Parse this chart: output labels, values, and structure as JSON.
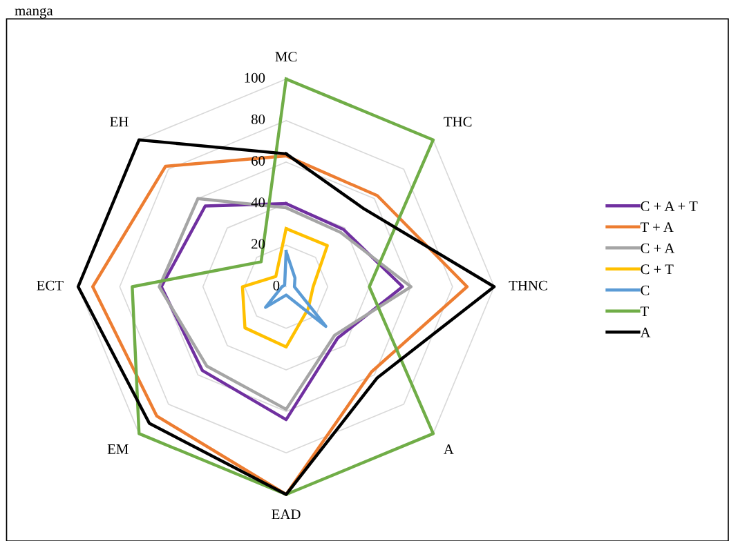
{
  "chart_data": {
    "type": "radar",
    "annotations": [
      "manga"
    ],
    "categories": [
      "MC",
      "THC",
      "THNC",
      "A",
      "EAD",
      "EM",
      "ECT",
      "EH"
    ],
    "ylim": [
      0,
      100
    ],
    "yticks": [
      0,
      20,
      40,
      60,
      80,
      100
    ],
    "grid": true,
    "legend": "right",
    "marker": "none",
    "line_style": "solid",
    "series": [
      {
        "name": "C + A + T",
        "color": "#7030a0",
        "values": [
          40,
          39,
          56,
          35,
          64,
          57,
          60,
          55
        ]
      },
      {
        "name": "T + A",
        "color": "#ed7d31",
        "values": [
          63,
          62,
          87,
          58,
          100,
          88,
          93,
          82
        ]
      },
      {
        "name": "C + A",
        "color": "#a5a5a5",
        "values": [
          38,
          37,
          60,
          33,
          59,
          54,
          61,
          60
        ]
      },
      {
        "name": "C + T",
        "color": "#ffc000",
        "values": [
          28,
          28,
          13,
          15,
          29,
          28,
          21,
          7
        ]
      },
      {
        "name": "C",
        "color": "#5b9bd5",
        "values": [
          17,
          6,
          4,
          27,
          4,
          14,
          2,
          1
        ]
      },
      {
        "name": "T",
        "color": "#70ad47",
        "values": [
          100,
          100,
          40,
          100,
          100,
          100,
          74,
          17
        ]
      },
      {
        "name": "A",
        "color": "#000000",
        "values": [
          64,
          53,
          100,
          62,
          100,
          93,
          100,
          100
        ]
      }
    ]
  }
}
